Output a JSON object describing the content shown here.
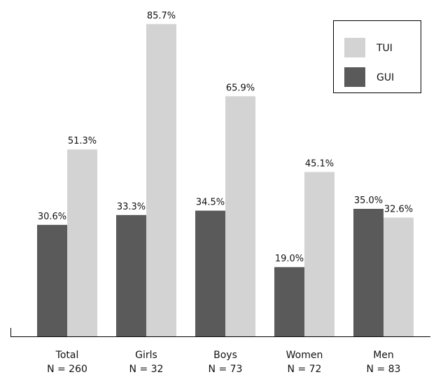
{
  "chart_data": {
    "type": "bar",
    "title": "",
    "xlabel": "",
    "ylabel": "",
    "ylim": [
      0,
      100
    ],
    "grid": false,
    "legend_position": "top-right",
    "categories": [
      "Total",
      "Girls",
      "Boys",
      "Women",
      "Men"
    ],
    "category_sublabels": [
      "N = 260",
      "N = 32",
      "N = 73",
      "N = 72",
      "N = 83"
    ],
    "series": [
      {
        "name": "GUI",
        "color": "#5a5a5a",
        "values": [
          30.6,
          33.3,
          34.5,
          19.0,
          35.0
        ],
        "labels": [
          "30.6%",
          "33.3%",
          "34.5%",
          "19.0%",
          "35.0%"
        ]
      },
      {
        "name": "TUI",
        "color": "#d3d3d3",
        "values": [
          51.3,
          85.7,
          65.9,
          45.1,
          32.6
        ],
        "labels": [
          "51.3%",
          "85.7%",
          "65.9%",
          "45.1%",
          "32.6%"
        ]
      }
    ],
    "legend": {
      "order": [
        "TUI",
        "GUI"
      ]
    }
  }
}
